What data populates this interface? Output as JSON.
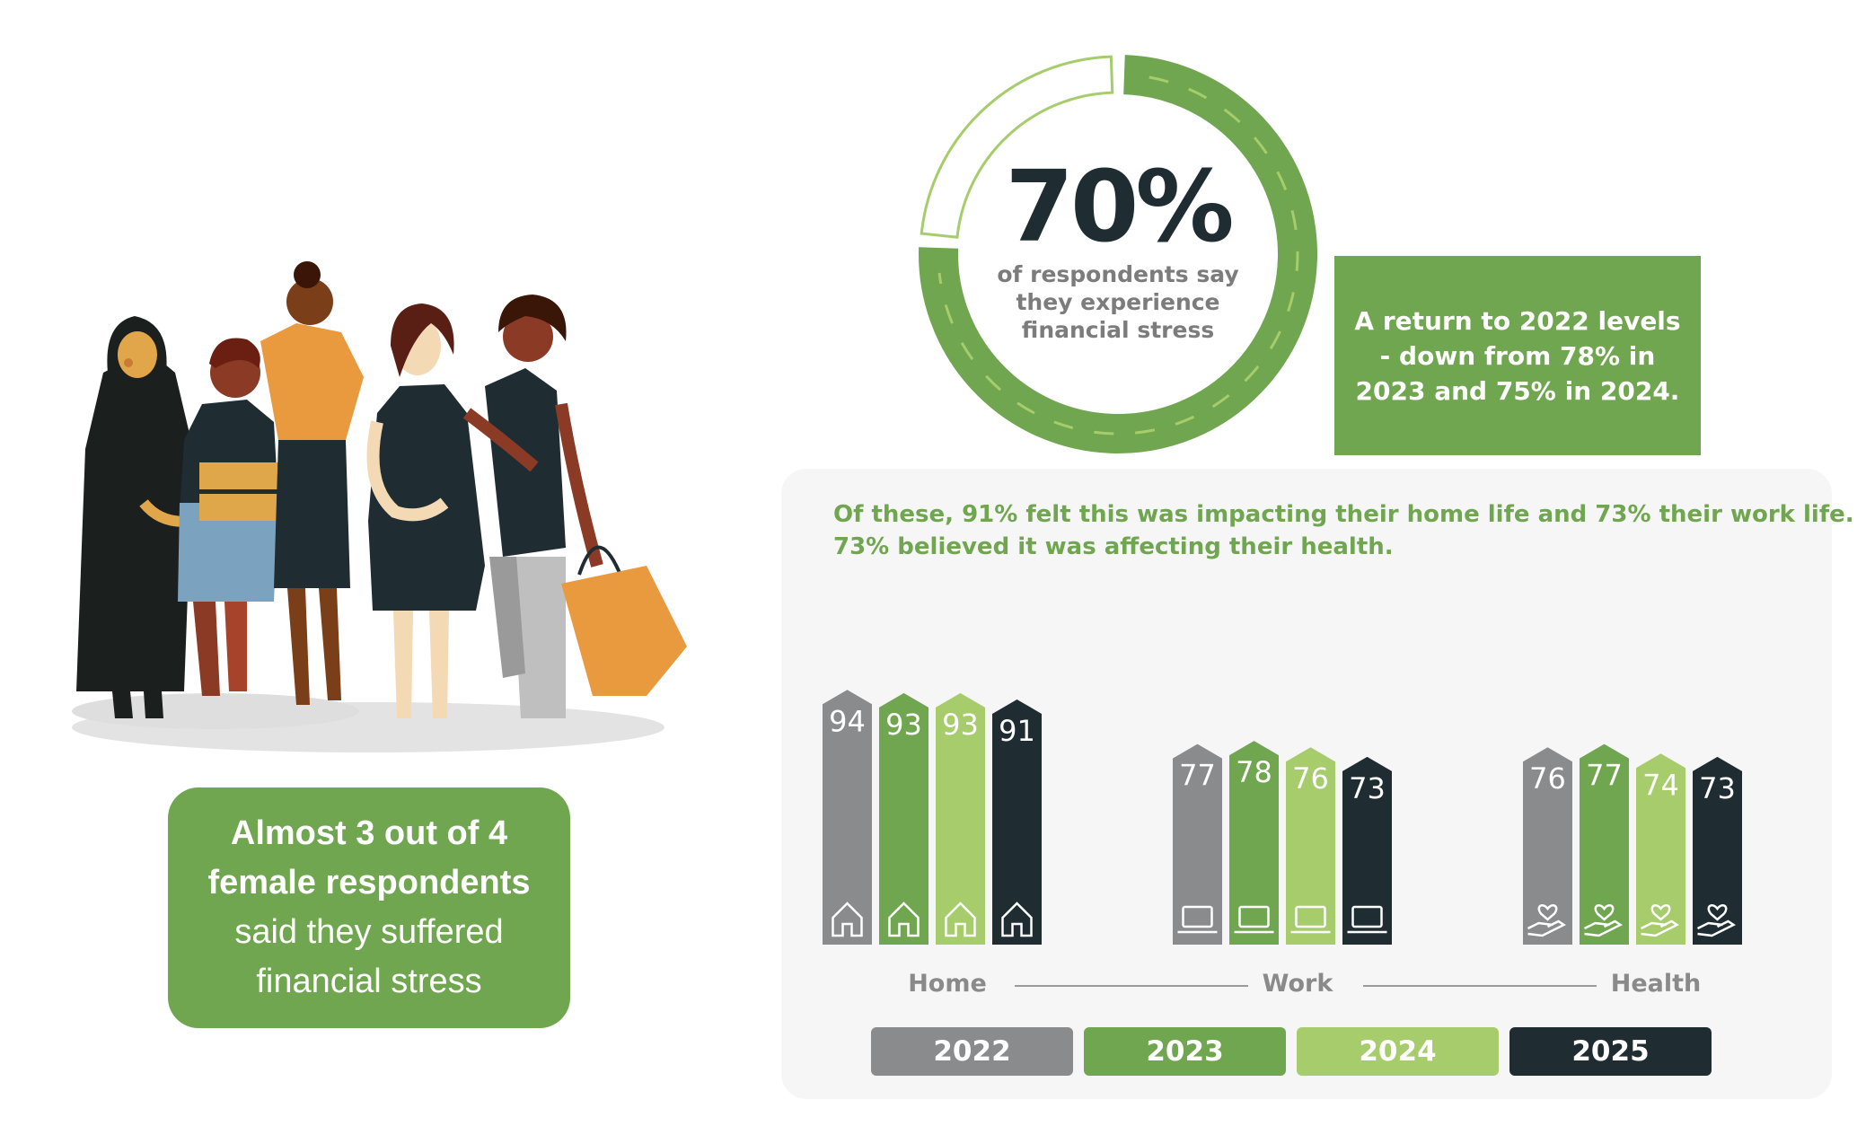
{
  "donut": {
    "percent_label": "70%",
    "percent_value": 70,
    "caption_lines": [
      "of respondents say",
      "they experience",
      "financial stress"
    ],
    "color": "#6fa64f"
  },
  "note": {
    "text": "A return to 2022 levels - down from 78% in 2023 and 75% in 2024."
  },
  "callout": {
    "bold_lines": [
      "Almost 3 out of 4",
      "female respondents"
    ],
    "regular_lines": [
      "said they suffered",
      "financial stress"
    ]
  },
  "chart_data": {
    "type": "bar",
    "subtitle_lines": [
      "Of these, 91% felt this was impacting their home life and 73% their work life.",
      "73% believed it was affecting their health."
    ],
    "categories": [
      "Home",
      "Work",
      "Health"
    ],
    "category_icons": [
      "house-icon",
      "laptop-icon",
      "heart-hand-icon"
    ],
    "series": [
      {
        "name": "2022",
        "color": "#8a8b8d",
        "values": [
          94,
          77,
          76
        ]
      },
      {
        "name": "2023",
        "color": "#6fa64f",
        "values": [
          93,
          78,
          77
        ]
      },
      {
        "name": "2024",
        "color": "#a6cc6b",
        "values": [
          93,
          76,
          74
        ]
      },
      {
        "name": "2025",
        "color": "#1f2d33",
        "values": [
          91,
          73,
          73
        ]
      }
    ],
    "ylim": [
      0,
      100
    ],
    "legend_position": "bottom"
  }
}
